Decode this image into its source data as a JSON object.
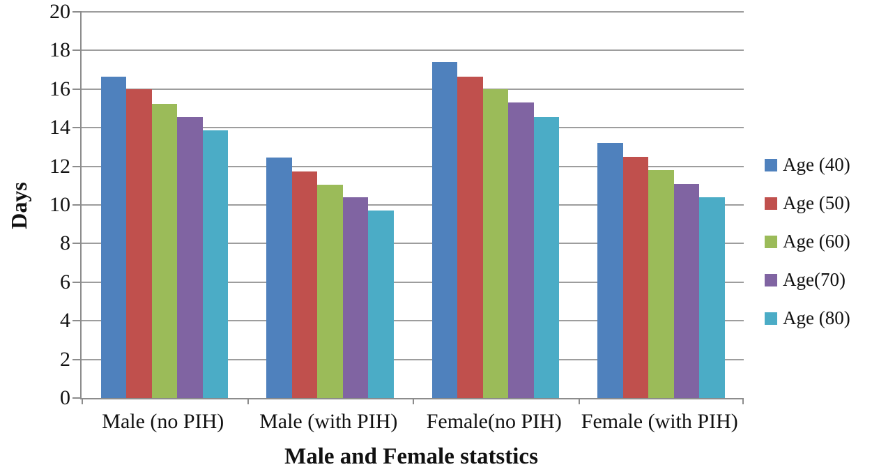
{
  "chart_data": {
    "type": "bar",
    "xlabel": "Male and Female statstics",
    "ylabel": "Days",
    "categories": [
      "Male (no PIH)",
      "Male (with PIH)",
      "Female(no PIH)",
      "Female (with PIH)"
    ],
    "series": [
      {
        "name": "Age (40)",
        "color": "#4F81BD",
        "values": [
          16.65,
          12.45,
          17.4,
          13.2
        ]
      },
      {
        "name": "Age (50)",
        "color": "#C0504D",
        "values": [
          16.0,
          11.75,
          16.65,
          12.5
        ]
      },
      {
        "name": "Age (60)",
        "color": "#9BBB59",
        "values": [
          15.25,
          11.05,
          16.0,
          11.8
        ]
      },
      {
        "name": "Age(70)",
        "color": "#8064A2",
        "values": [
          14.55,
          10.4,
          15.3,
          11.1
        ]
      },
      {
        "name": "Age (80)",
        "color": "#4BACC6",
        "values": [
          13.85,
          9.7,
          14.55,
          10.4
        ]
      }
    ],
    "ylim": [
      0,
      20
    ],
    "ytick_step": 2,
    "grid": true,
    "legend_position": "right",
    "gridline_color": "#9d9d9d",
    "axis_color": "#8c8c8c"
  }
}
